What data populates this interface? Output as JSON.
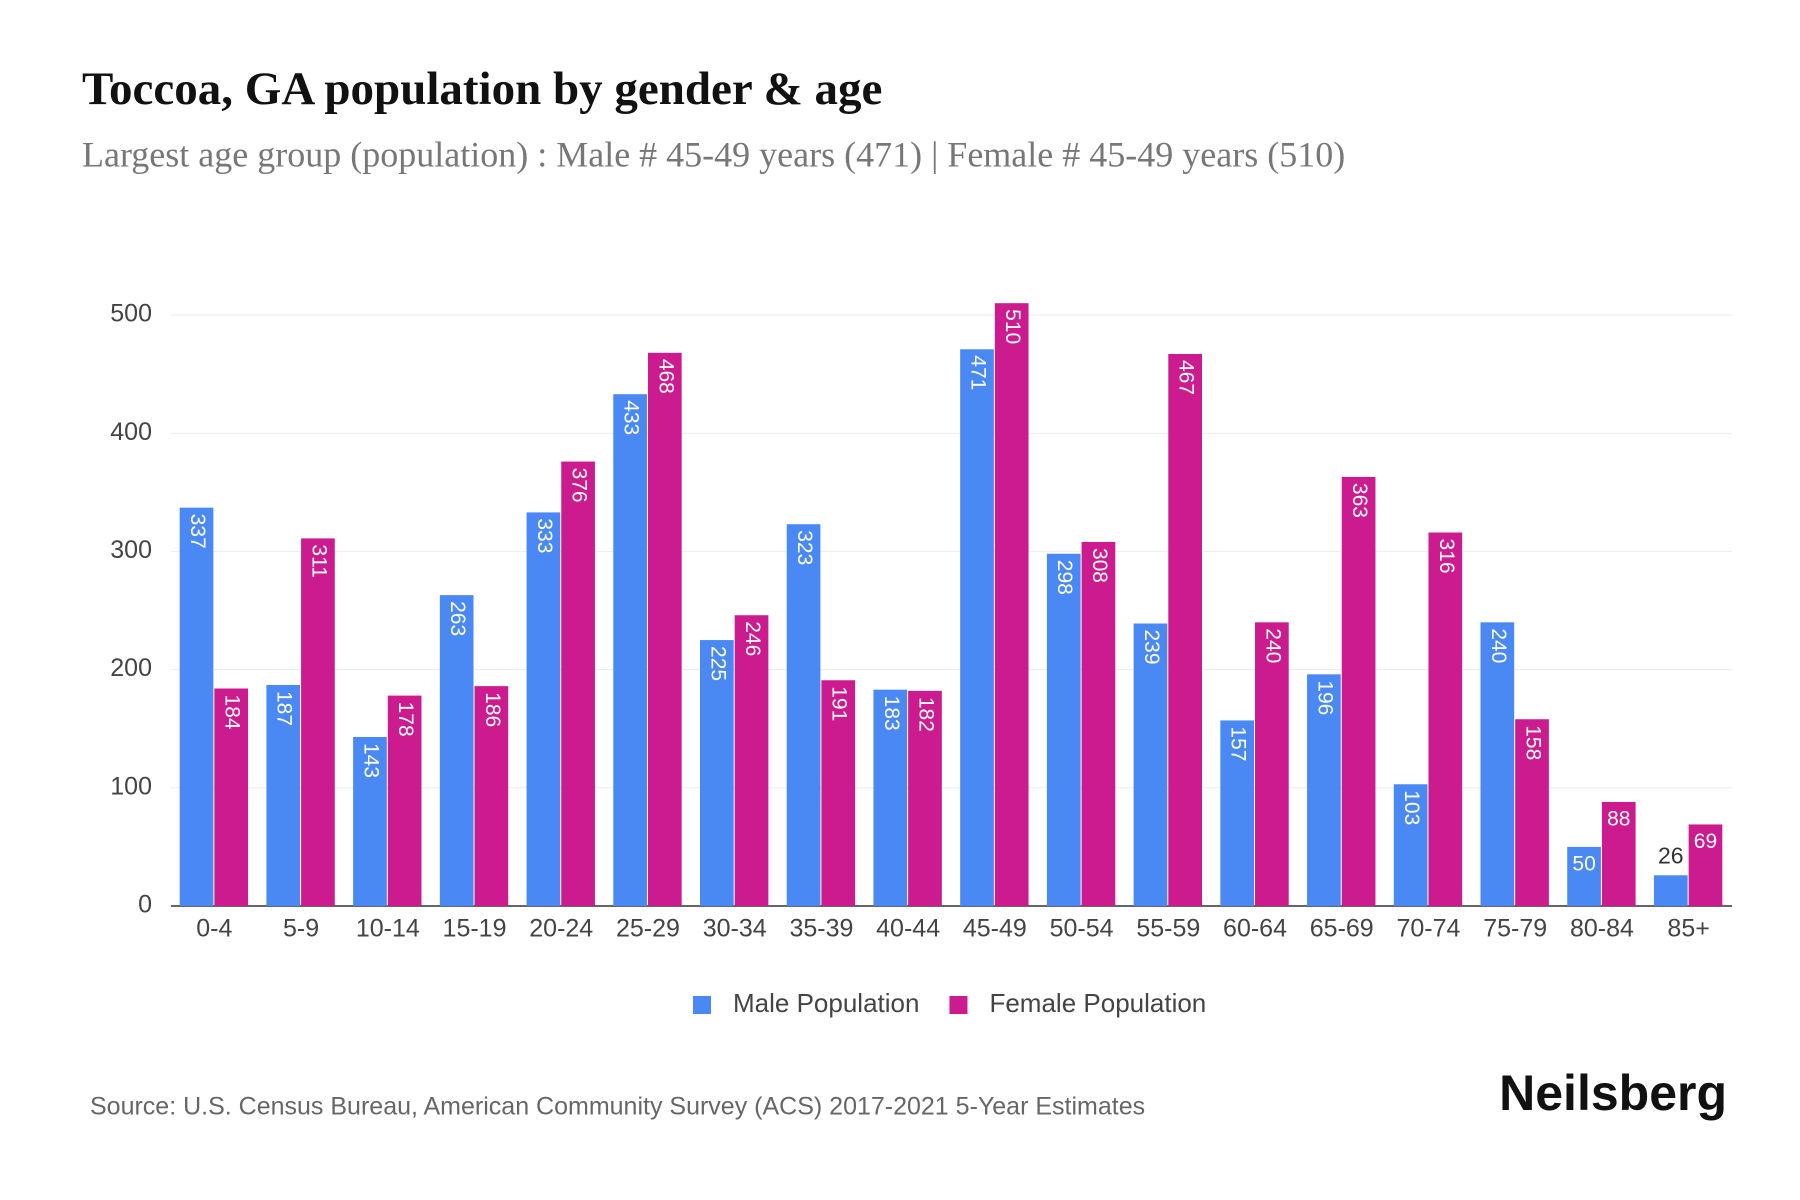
{
  "chart_data": {
    "type": "bar",
    "title": "Toccoa, GA population by gender & age",
    "subtitle": "Largest age group (population) : Male # 45-49 years (471) | Female # 45-49 years (510)",
    "categories": [
      "0-4",
      "5-9",
      "10-14",
      "15-19",
      "20-24",
      "25-29",
      "30-34",
      "35-39",
      "40-44",
      "45-49",
      "50-54",
      "55-59",
      "60-64",
      "65-69",
      "70-74",
      "75-79",
      "80-84",
      "85+"
    ],
    "series": [
      {
        "name": "Male Population",
        "color": "#4a89f3",
        "values": [
          337,
          187,
          143,
          263,
          333,
          433,
          225,
          323,
          183,
          471,
          298,
          239,
          157,
          196,
          103,
          240,
          50,
          26
        ]
      },
      {
        "name": "Female Population",
        "color": "#cb1b8f",
        "values": [
          184,
          311,
          178,
          186,
          376,
          468,
          246,
          191,
          182,
          510,
          308,
          467,
          240,
          363,
          316,
          158,
          88,
          69
        ]
      }
    ],
    "ylim": [
      0,
      500
    ],
    "yticks": [
      0,
      100,
      200,
      300,
      400,
      500
    ],
    "grid": true,
    "legend": "bottom",
    "source": "Source: U.S. Census Bureau, American Community Survey (ACS) 2017-2021 5-Year Estimates",
    "brand": "Neilsberg"
  }
}
